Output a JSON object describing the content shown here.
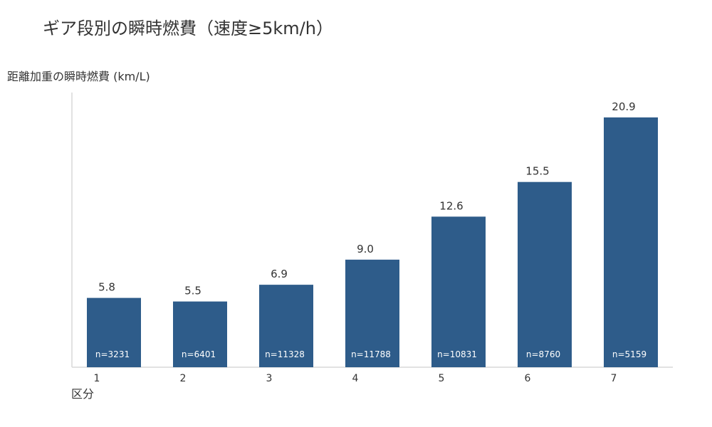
{
  "chart_data": {
    "type": "bar",
    "title": "ギア段別の瞬時燃費（速度≥5km/h）",
    "ylabel": "距離加重の瞬時燃費 (km/L)",
    "xlabel": "区分",
    "categories": [
      "1",
      "2",
      "3",
      "4",
      "5",
      "6",
      "7"
    ],
    "values": [
      5.8,
      5.5,
      6.9,
      9.0,
      12.6,
      15.5,
      20.9
    ],
    "value_labels": [
      "5.8",
      "5.5",
      "6.9",
      "9.0",
      "12.6",
      "15.5",
      "20.9"
    ],
    "counts": [
      "n=3231",
      "n=6401",
      "n=11328",
      "n=11788",
      "n=10831",
      "n=8760",
      "n=5159"
    ],
    "ylim": [
      0,
      22
    ],
    "grid": false,
    "legend": "none",
    "bar_color": "#2e5c8a",
    "axis_color": "#d9d9d9"
  }
}
